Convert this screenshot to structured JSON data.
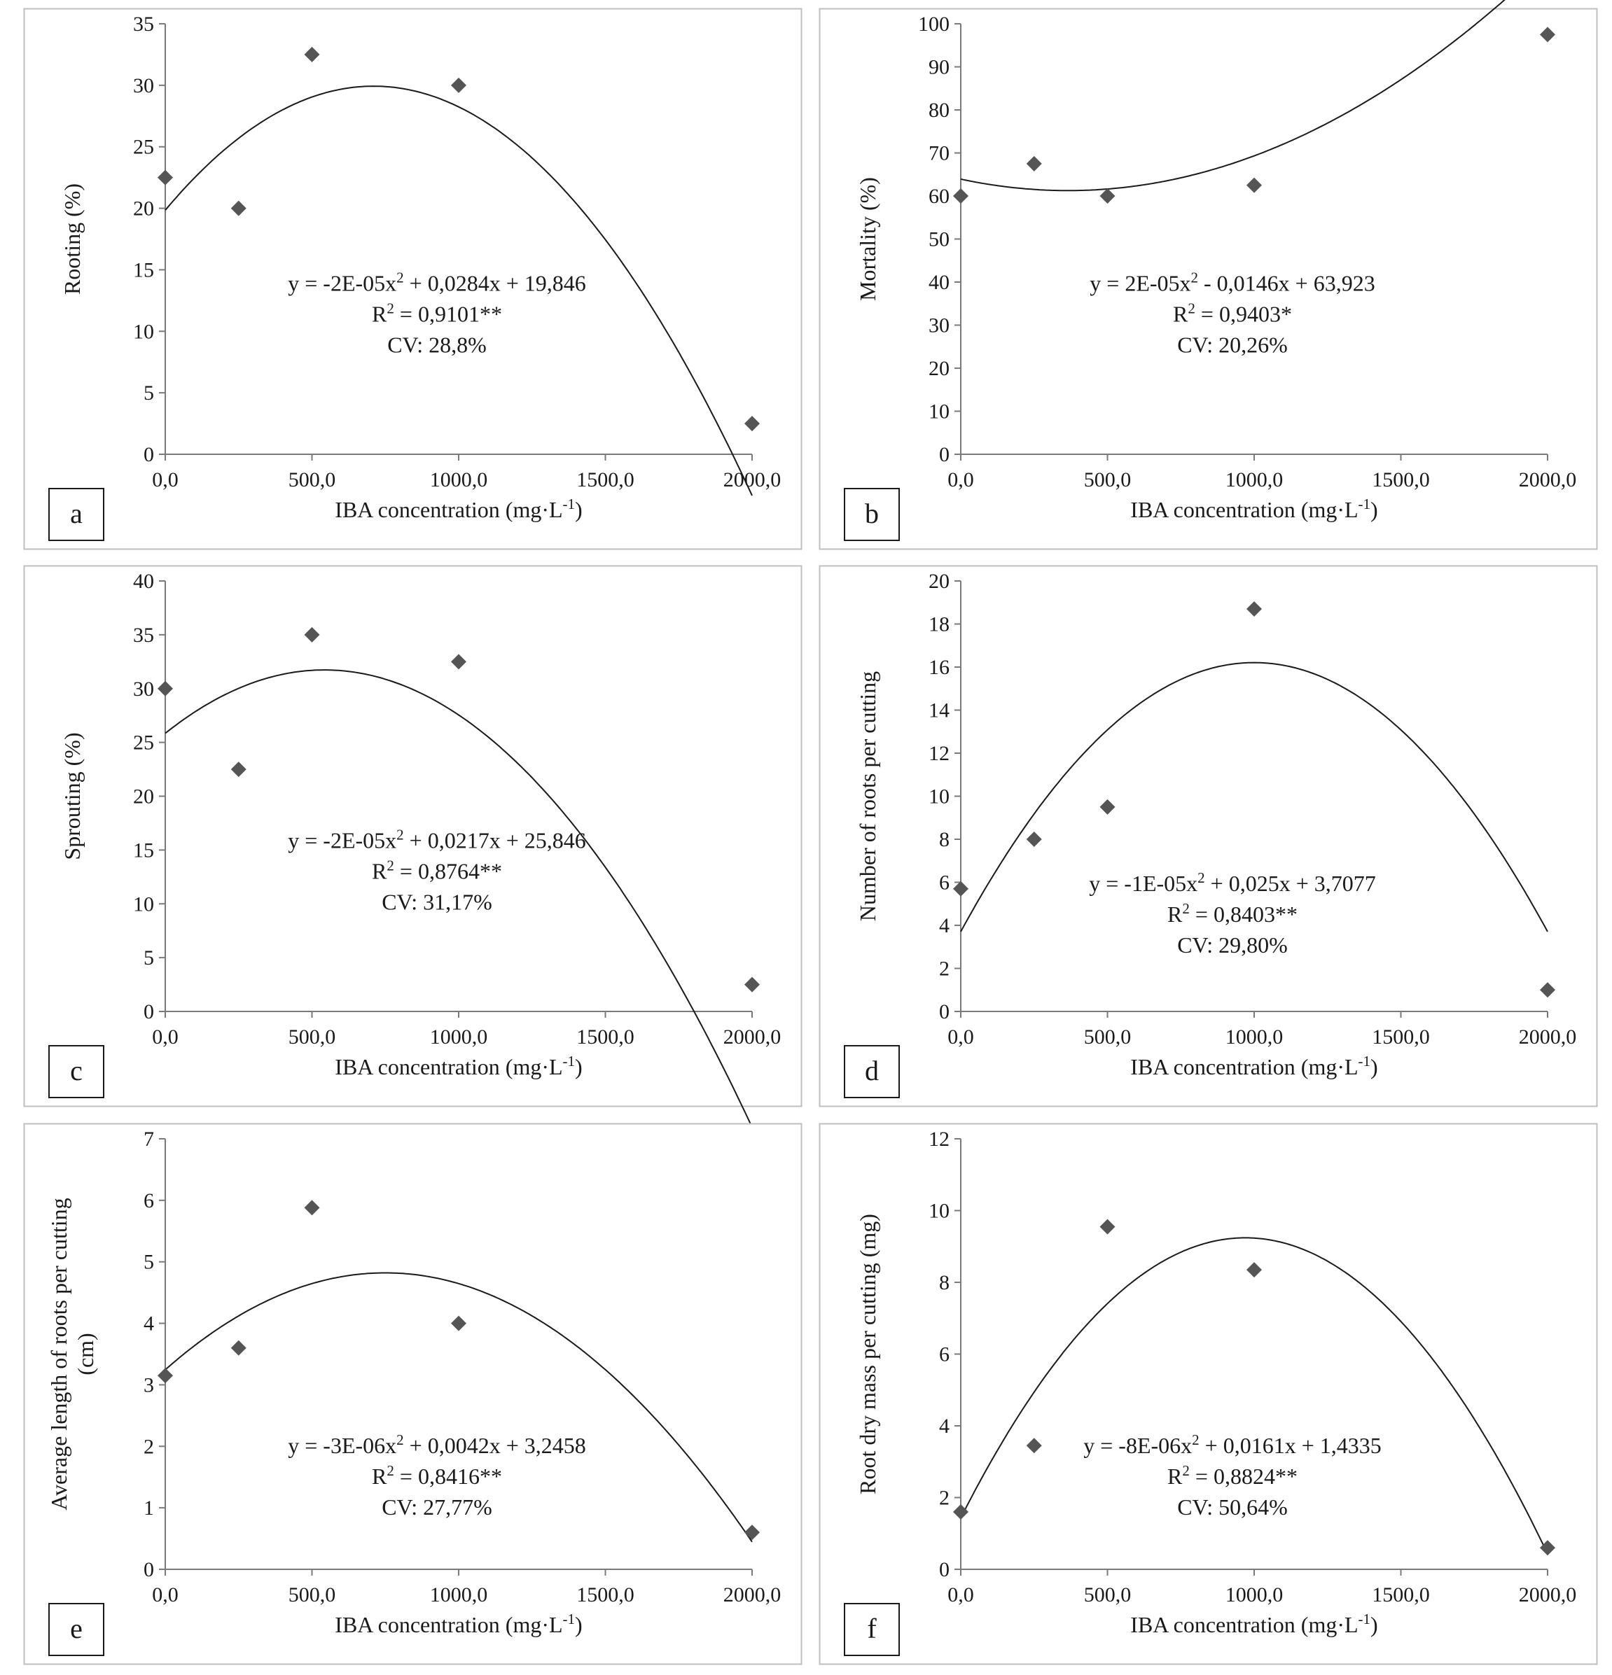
{
  "chart_data": [
    {
      "type": "scatter",
      "panel_label": "a",
      "xlabel": "IBA concentration (mg·L",
      "xlabel_sup": "-1",
      "xlabel_end": ")",
      "ylabel_lines": [
        "Rooting (%)"
      ],
      "xlim": [
        0,
        2000
      ],
      "ylim": [
        0,
        35
      ],
      "xticks": [
        0,
        500,
        1000,
        1500,
        2000
      ],
      "xtick_labels": [
        "0,0",
        "500,0",
        "1000,0",
        "1500,0",
        "2000,0"
      ],
      "yticks": [
        0,
        5,
        10,
        15,
        20,
        25,
        30,
        35
      ],
      "ytick_labels": [
        "0",
        "5",
        "10",
        "15",
        "20",
        "25",
        "30",
        "35"
      ],
      "points": [
        [
          0,
          22.5
        ],
        [
          250,
          20
        ],
        [
          500,
          32.5
        ],
        [
          1000,
          30
        ],
        [
          2000,
          2.5
        ]
      ],
      "trend": {
        "a": -2e-05,
        "b": 0.0284,
        "c": 19.846
      },
      "eq": {
        "pre": "y = -2E-05x",
        "post": " + 0,0284x + 19,846"
      },
      "r2": {
        "pre": "R",
        "post": " = 0,9101**"
      },
      "cv": "CV: 28,8%",
      "grid": false,
      "colors": {
        "marker": "#555555",
        "line": "#1a1a1a",
        "frame": "#bfbfbf"
      }
    },
    {
      "type": "scatter",
      "panel_label": "b",
      "xlabel": "IBA concentration (mg·L",
      "xlabel_sup": "-1",
      "xlabel_end": ")",
      "ylabel_lines": [
        "Mortality (%)"
      ],
      "xlim": [
        0,
        2000
      ],
      "ylim": [
        0,
        100
      ],
      "xticks": [
        0,
        500,
        1000,
        1500,
        2000
      ],
      "xtick_labels": [
        "0,0",
        "500,0",
        "1000,0",
        "1500,0",
        "2000,0"
      ],
      "yticks": [
        0,
        10,
        20,
        30,
        40,
        50,
        60,
        70,
        80,
        90,
        100
      ],
      "ytick_labels": [
        "0",
        "10",
        "20",
        "30",
        "40",
        "50",
        "60",
        "70",
        "80",
        "90",
        "100"
      ],
      "points": [
        [
          0,
          60
        ],
        [
          250,
          67.5
        ],
        [
          500,
          60
        ],
        [
          1000,
          62.5
        ],
        [
          2000,
          97.5
        ]
      ],
      "trend": {
        "a": 2e-05,
        "b": -0.0146,
        "c": 63.923
      },
      "eq": {
        "pre": "y = 2E-05x",
        "post": " - 0,0146x + 63,923"
      },
      "r2": {
        "pre": "R",
        "post": " = 0,9403*"
      },
      "cv": "CV: 20,26%",
      "grid": false,
      "colors": {
        "marker": "#555555",
        "line": "#1a1a1a",
        "frame": "#bfbfbf"
      }
    },
    {
      "type": "scatter",
      "panel_label": "c",
      "xlabel": "IBA concentration (mg·L",
      "xlabel_sup": "-1",
      "xlabel_end": ")",
      "ylabel_lines": [
        "Sprouting (%)"
      ],
      "xlim": [
        0,
        2000
      ],
      "ylim": [
        0,
        40
      ],
      "xticks": [
        0,
        500,
        1000,
        1500,
        2000
      ],
      "xtick_labels": [
        "0,0",
        "500,0",
        "1000,0",
        "1500,0",
        "2000,0"
      ],
      "yticks": [
        0,
        5,
        10,
        15,
        20,
        25,
        30,
        35,
        40
      ],
      "ytick_labels": [
        "0",
        "5",
        "10",
        "15",
        "20",
        "25",
        "30",
        "35",
        "40"
      ],
      "points": [
        [
          0,
          30
        ],
        [
          250,
          22.5
        ],
        [
          500,
          35
        ],
        [
          1000,
          32.5
        ],
        [
          2000,
          2.5
        ]
      ],
      "trend": {
        "a": -2e-05,
        "b": 0.0217,
        "c": 25.846
      },
      "eq": {
        "pre": "y = -2E-05x",
        "post": " + 0,0217x + 25,846"
      },
      "r2": {
        "pre": "R",
        "post": " = 0,8764**"
      },
      "cv": "CV: 31,17%",
      "grid": false,
      "colors": {
        "marker": "#555555",
        "line": "#1a1a1a",
        "frame": "#bfbfbf"
      }
    },
    {
      "type": "scatter",
      "panel_label": "d",
      "xlabel": "IBA concentration (mg·L",
      "xlabel_sup": "-1",
      "xlabel_end": ")",
      "ylabel_lines": [
        "Number of roots per cutting"
      ],
      "xlim": [
        0,
        2000
      ],
      "ylim": [
        0,
        20
      ],
      "xticks": [
        0,
        500,
        1000,
        1500,
        2000
      ],
      "xtick_labels": [
        "0,0",
        "500,0",
        "1000,0",
        "1500,0",
        "2000,0"
      ],
      "yticks": [
        0,
        2,
        4,
        6,
        8,
        10,
        12,
        14,
        16,
        18,
        20
      ],
      "ytick_labels": [
        "0",
        "2",
        "4",
        "6",
        "8",
        "10",
        "12",
        "14",
        "16",
        "18",
        "20"
      ],
      "points": [
        [
          0,
          5.7
        ],
        [
          250,
          8
        ],
        [
          500,
          9.5
        ],
        [
          1000,
          18.7
        ],
        [
          2000,
          1
        ]
      ],
      "trend": {
        "a": -1.25e-05,
        "b": 0.025,
        "c": 3.7077
      },
      "eq": {
        "pre": "y = -1E-05x",
        "post": " + 0,025x + 3,7077"
      },
      "r2": {
        "pre": "R",
        "post": " = 0,8403**"
      },
      "cv": "CV: 29,80%",
      "grid": false,
      "colors": {
        "marker": "#555555",
        "line": "#1a1a1a",
        "frame": "#bfbfbf"
      }
    },
    {
      "type": "scatter",
      "panel_label": "e",
      "xlabel": "IBA concentration (mg·L",
      "xlabel_sup": "-1",
      "xlabel_end": ")",
      "ylabel_lines": [
        "Average length of roots per cutting",
        "(cm)"
      ],
      "xlim": [
        0,
        2000
      ],
      "ylim": [
        0,
        7
      ],
      "xticks": [
        0,
        500,
        1000,
        1500,
        2000
      ],
      "xtick_labels": [
        "0,0",
        "500,0",
        "1000,0",
        "1500,0",
        "2000,0"
      ],
      "yticks": [
        0,
        1,
        2,
        3,
        4,
        5,
        6,
        7
      ],
      "ytick_labels": [
        "0",
        "1",
        "2",
        "3",
        "4",
        "5",
        "6",
        "7"
      ],
      "points": [
        [
          0,
          3.15
        ],
        [
          250,
          3.6
        ],
        [
          500,
          5.88
        ],
        [
          1000,
          4
        ],
        [
          2000,
          0.6
        ]
      ],
      "trend": {
        "a": -2.8e-06,
        "b": 0.0042,
        "c": 3.2458
      },
      "eq": {
        "pre": "y = -3E-06x",
        "post": " + 0,0042x + 3,2458"
      },
      "r2": {
        "pre": "R",
        "post": " = 0,8416**"
      },
      "cv": "CV: 27,77%",
      "grid": false,
      "colors": {
        "marker": "#555555",
        "line": "#1a1a1a",
        "frame": "#bfbfbf"
      }
    },
    {
      "type": "scatter",
      "panel_label": "f",
      "xlabel": "IBA concentration (mg·L",
      "xlabel_sup": "-1",
      "xlabel_end": ")",
      "ylabel_lines": [
        "Root dry mass per cutting (mg)"
      ],
      "xlim": [
        0,
        2000
      ],
      "ylim": [
        0,
        12
      ],
      "xticks": [
        0,
        500,
        1000,
        1500,
        2000
      ],
      "xtick_labels": [
        "0,0",
        "500,0",
        "1000,0",
        "1500,0",
        "2000,0"
      ],
      "yticks": [
        0,
        2,
        4,
        6,
        8,
        10,
        12
      ],
      "ytick_labels": [
        "0",
        "2",
        "4",
        "6",
        "8",
        "10",
        "12"
      ],
      "points": [
        [
          0,
          1.6
        ],
        [
          250,
          3.45
        ],
        [
          500,
          9.55
        ],
        [
          1000,
          8.35
        ],
        [
          2000,
          0.6
        ]
      ],
      "trend": {
        "a": -8.3e-06,
        "b": 0.0161,
        "c": 1.4335
      },
      "eq": {
        "pre": "y = -8E-06x",
        "post": " + 0,0161x + 1,4335"
      },
      "r2": {
        "pre": "R",
        "post": " = 0,8824**"
      },
      "cv": "CV: 50,64%",
      "grid": false,
      "colors": {
        "marker": "#555555",
        "line": "#1a1a1a",
        "frame": "#bfbfbf"
      }
    }
  ]
}
